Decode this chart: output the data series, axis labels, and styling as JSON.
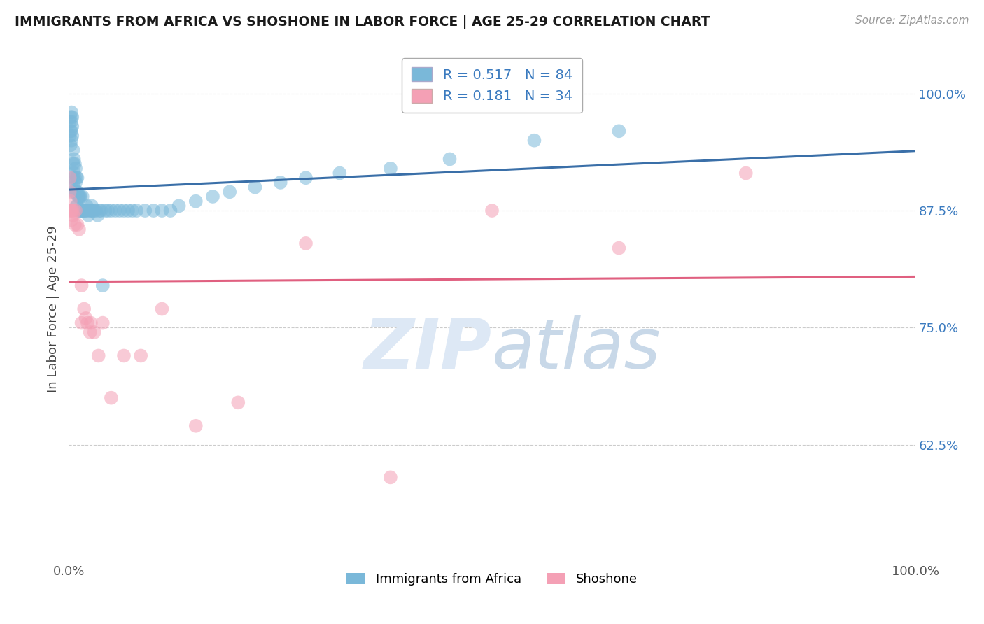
{
  "title": "IMMIGRANTS FROM AFRICA VS SHOSHONE IN LABOR FORCE | AGE 25-29 CORRELATION CHART",
  "source": "Source: ZipAtlas.com",
  "ylabel": "In Labor Force | Age 25-29",
  "yticklabels": [
    "62.5%",
    "75.0%",
    "87.5%",
    "100.0%"
  ],
  "ytick_values": [
    0.625,
    0.75,
    0.875,
    1.0
  ],
  "xmin": 0.0,
  "xmax": 1.0,
  "ymin": 0.5,
  "ymax": 1.04,
  "legend_label1": "Immigrants from Africa",
  "legend_label2": "Shoshone",
  "R1": 0.517,
  "N1": 84,
  "R2": 0.181,
  "N2": 34,
  "color_blue": "#7ab8d9",
  "color_pink": "#f4a0b5",
  "color_blue_line": "#3a6fa8",
  "color_pink_line": "#e06080",
  "color_text_blue": "#3a7abf",
  "color_text_pink": "#e06080",
  "blue_scatter_x": [
    0.001,
    0.001,
    0.002,
    0.002,
    0.002,
    0.003,
    0.003,
    0.003,
    0.003,
    0.004,
    0.004,
    0.004,
    0.005,
    0.005,
    0.005,
    0.005,
    0.006,
    0.006,
    0.006,
    0.007,
    0.007,
    0.007,
    0.008,
    0.008,
    0.008,
    0.009,
    0.009,
    0.009,
    0.01,
    0.01,
    0.01,
    0.011,
    0.011,
    0.012,
    0.012,
    0.013,
    0.013,
    0.014,
    0.014,
    0.015,
    0.016,
    0.016,
    0.017,
    0.018,
    0.019,
    0.02,
    0.021,
    0.022,
    0.023,
    0.025,
    0.026,
    0.027,
    0.028,
    0.03,
    0.032,
    0.034,
    0.036,
    0.038,
    0.04,
    0.043,
    0.046,
    0.05,
    0.055,
    0.06,
    0.065,
    0.07,
    0.075,
    0.08,
    0.09,
    0.1,
    0.11,
    0.12,
    0.13,
    0.15,
    0.17,
    0.19,
    0.22,
    0.25,
    0.28,
    0.32,
    0.38,
    0.45,
    0.55,
    0.65
  ],
  "blue_scatter_y": [
    0.955,
    0.97,
    0.945,
    0.96,
    0.975,
    0.95,
    0.96,
    0.97,
    0.98,
    0.955,
    0.965,
    0.975,
    0.895,
    0.91,
    0.925,
    0.94,
    0.9,
    0.915,
    0.93,
    0.895,
    0.91,
    0.925,
    0.895,
    0.905,
    0.92,
    0.88,
    0.895,
    0.91,
    0.88,
    0.895,
    0.91,
    0.875,
    0.89,
    0.875,
    0.89,
    0.875,
    0.89,
    0.875,
    0.89,
    0.875,
    0.875,
    0.89,
    0.875,
    0.875,
    0.875,
    0.875,
    0.88,
    0.875,
    0.87,
    0.875,
    0.875,
    0.88,
    0.875,
    0.875,
    0.875,
    0.87,
    0.875,
    0.875,
    0.795,
    0.875,
    0.875,
    0.875,
    0.875,
    0.875,
    0.875,
    0.875,
    0.875,
    0.875,
    0.875,
    0.875,
    0.875,
    0.875,
    0.88,
    0.885,
    0.89,
    0.895,
    0.9,
    0.905,
    0.91,
    0.915,
    0.92,
    0.93,
    0.95,
    0.96
  ],
  "pink_scatter_x": [
    0.001,
    0.001,
    0.002,
    0.002,
    0.003,
    0.003,
    0.004,
    0.005,
    0.006,
    0.007,
    0.008,
    0.01,
    0.012,
    0.015,
    0.018,
    0.022,
    0.026,
    0.03,
    0.04,
    0.05,
    0.065,
    0.085,
    0.11,
    0.15,
    0.2,
    0.28,
    0.38,
    0.5,
    0.65,
    0.8,
    0.015,
    0.02,
    0.025,
    0.035
  ],
  "pink_scatter_y": [
    0.895,
    0.91,
    0.885,
    0.875,
    0.875,
    0.865,
    0.875,
    0.87,
    0.875,
    0.86,
    0.875,
    0.86,
    0.855,
    0.795,
    0.77,
    0.755,
    0.755,
    0.745,
    0.755,
    0.675,
    0.72,
    0.72,
    0.77,
    0.645,
    0.67,
    0.84,
    0.59,
    0.875,
    0.835,
    0.915,
    0.755,
    0.76,
    0.745,
    0.72
  ]
}
